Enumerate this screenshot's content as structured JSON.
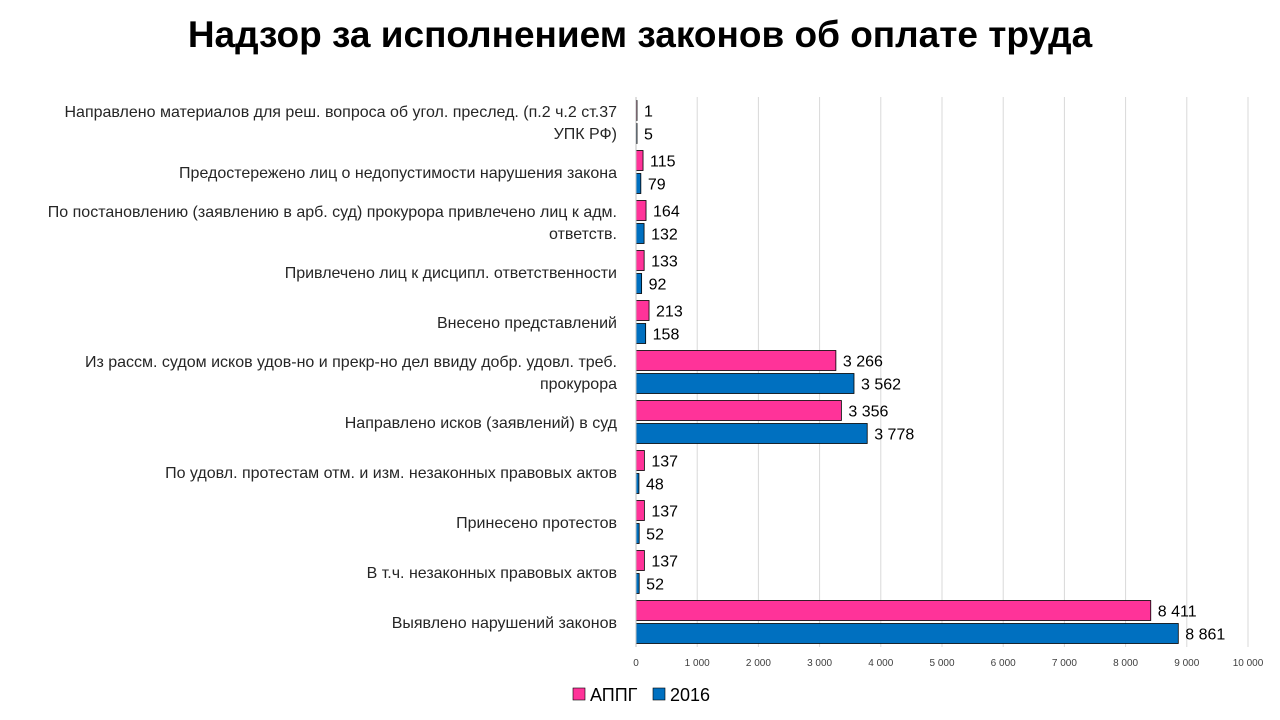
{
  "chart_data": {
    "type": "bar",
    "orientation": "horizontal",
    "title": "Надзор за исполнением законов об оплате труда",
    "categories": [
      [
        "Направлено материалов для реш. вопроса об угол. преслед. (п.2 ч.2 ст.37",
        "УПК РФ)"
      ],
      [
        "Предостережено лиц о  недопустимости нарушения  закона"
      ],
      [
        "По постановлению (заявлению в арб. суд) прокурора привлечено лиц к адм.",
        "ответств."
      ],
      [
        "Привлечено лиц к дисципл. ответственности"
      ],
      [
        "Внесено  представлений"
      ],
      [
        "Из рассм. судом исков удов-но и прекр-но дел ввиду добр. удовл. треб.",
        "прокурора"
      ],
      [
        "Направлено исков (заявлений) в суд"
      ],
      [
        "По удовл. протестам отм. и изм. незаконных правовых актов"
      ],
      [
        "Принесено протестов"
      ],
      [
        "В т.ч. незаконных правовых актов"
      ],
      [
        "Выявлено нарушений законов"
      ]
    ],
    "series": [
      {
        "name": "АППГ",
        "color": "#ff3399",
        "values": [
          1,
          115,
          164,
          133,
          213,
          3266,
          3356,
          137,
          137,
          137,
          8411
        ],
        "labels": [
          "1",
          "115",
          "164",
          "133",
          "213",
          "3 266",
          "3 356",
          "137",
          "137",
          "137",
          "8 411"
        ]
      },
      {
        "name": "2016",
        "color": "#0070c0",
        "values": [
          5,
          79,
          132,
          92,
          158,
          3562,
          3778,
          48,
          52,
          52,
          8861
        ],
        "labels": [
          "5",
          "79",
          "132",
          "92",
          "158",
          "3 562",
          "3 778",
          "48",
          "52",
          "52",
          "8 861"
        ]
      }
    ],
    "xlim": [
      0,
      10000
    ],
    "xticks": [
      0,
      1000,
      2000,
      3000,
      4000,
      5000,
      6000,
      7000,
      8000,
      9000,
      10000
    ],
    "xtick_labels": [
      "0",
      "1 000",
      "2 000",
      "3 000",
      "4 000",
      "5 000",
      "6 000",
      "7 000",
      "8 000",
      "9 000",
      "10 000"
    ],
    "grid": true,
    "legend_position": "bottom"
  }
}
